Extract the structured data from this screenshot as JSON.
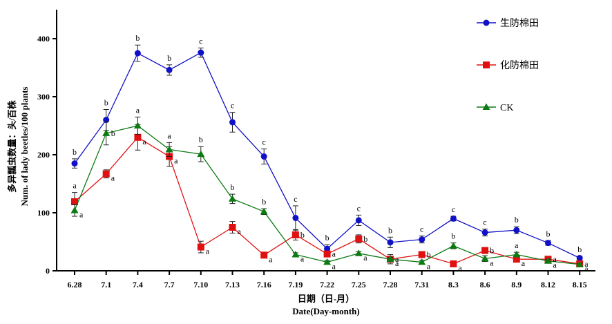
{
  "chart_data": {
    "type": "line",
    "xlabel_cn": "日期（日-月）",
    "xlabel_en": "Date(Day-month)",
    "ylabel_cn": "多异瓢虫数量：头/百株",
    "ylabel_en": "Num. of lady beetles/100 plants",
    "ylim": [
      0,
      450
    ],
    "yticks": [
      0,
      100,
      200,
      300,
      400
    ],
    "categories": [
      "6.28",
      "7.1",
      "7.4",
      "7.7",
      "7.10",
      "7.13",
      "7.16",
      "7.19",
      "7.22",
      "7.25",
      "7.28",
      "7.31",
      "8.3",
      "8.6",
      "8.9",
      "8.12",
      "8.15"
    ],
    "grid": false,
    "legend_position": "top-right",
    "series": [
      {
        "name": "生防棉田",
        "color": "#1010c8",
        "marker": "circle",
        "values": [
          185,
          260,
          375,
          346,
          376,
          256,
          197,
          91,
          38,
          87,
          49,
          54,
          90,
          66,
          70,
          48,
          22
        ],
        "errors": [
          8,
          18,
          14,
          9,
          8,
          17,
          13,
          21,
          7,
          9,
          9,
          6,
          4,
          6,
          6,
          4,
          3
        ],
        "sig": [
          "b",
          "b",
          "b",
          "b",
          "c",
          "c",
          "c",
          "c",
          "b",
          "c",
          "b",
          "c",
          "c",
          "c",
          "b",
          "b",
          "b"
        ]
      },
      {
        "name": "化防棉田",
        "color": "#e01010",
        "marker": "square",
        "values": [
          119,
          167,
          230,
          197,
          41,
          75,
          27,
          62,
          29,
          55,
          20,
          28,
          12,
          35,
          20,
          20,
          12
        ],
        "errors": [
          16,
          7,
          22,
          17,
          10,
          10,
          3,
          9,
          5,
          7,
          8,
          3,
          3,
          3,
          5,
          3,
          2
        ],
        "sig": [
          "a",
          "a",
          "a",
          "a",
          "a",
          "a",
          "a",
          "b",
          "a",
          "b",
          "a",
          "b",
          "a",
          "b",
          "a",
          "a",
          "a"
        ]
      },
      {
        "name": "CK",
        "color": "#0c7a12",
        "marker": "triangle",
        "values": [
          104,
          237,
          250,
          209,
          201,
          124,
          102,
          28,
          15,
          30,
          20,
          15,
          43,
          21,
          28,
          17,
          11
        ],
        "errors": [
          10,
          20,
          15,
          12,
          13,
          8,
          5,
          3,
          3,
          3,
          3,
          3,
          5,
          5,
          4,
          3,
          2
        ],
        "sig": [
          "a",
          "b",
          "a",
          "a",
          "b",
          "b",
          "b",
          "a",
          "a",
          "a",
          "a",
          "a",
          "b",
          "a",
          "a",
          "a",
          "a"
        ]
      }
    ]
  }
}
